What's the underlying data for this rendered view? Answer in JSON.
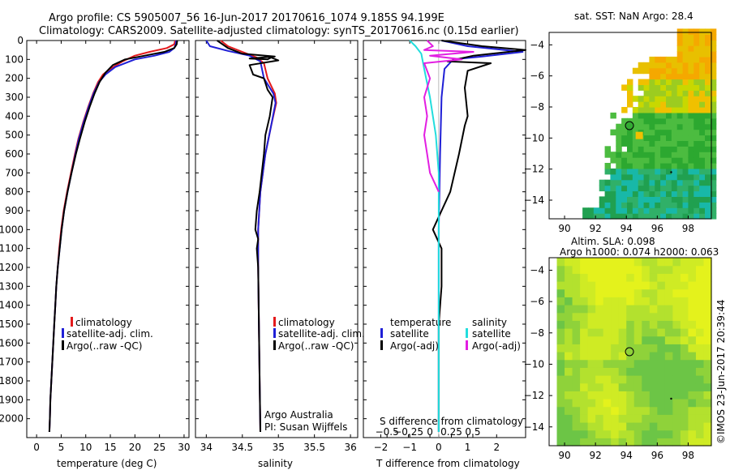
{
  "header": {
    "line1": "Argo profile: CS 5905007_56 16-Jun-2017 20170616_1074 9.185S 94.199E",
    "line2": "Climatology: CARS2009. Satellite-adjusted climatology: synTS_20170616.nc (0.15d earlier)"
  },
  "colors": {
    "climatology": "#e41a1c",
    "satellite": "#1f1fd6",
    "argo": "#000000",
    "salinity_satellite": "#22dddd",
    "salinity_argo": "#e21ee2"
  },
  "chart_data": [
    {
      "type": "line",
      "id": "temperature",
      "xlabel": "temperature (deg C)",
      "ylim": [
        2100,
        0
      ],
      "xlim": [
        -2,
        31
      ],
      "xticks": [
        0,
        5,
        10,
        15,
        20,
        25,
        30
      ],
      "yticks": [
        0,
        100,
        200,
        300,
        400,
        500,
        600,
        700,
        800,
        900,
        1000,
        1100,
        1200,
        1300,
        1400,
        1500,
        1600,
        1700,
        1800,
        1900,
        2000
      ],
      "legend": [
        "climatology",
        "satellite-adj. clim.",
        "Argo(..raw -QC)"
      ],
      "series": [
        {
          "name": "climatology",
          "role": "climatology",
          "points": [
            [
              28.2,
              0
            ],
            [
              28.0,
              20
            ],
            [
              26.5,
              40
            ],
            [
              23,
              60
            ],
            [
              20,
              80
            ],
            [
              17.5,
              110
            ],
            [
              15,
              150
            ],
            [
              13.5,
              180
            ],
            [
              12.5,
              220
            ],
            [
              11.5,
              280
            ],
            [
              10.5,
              350
            ],
            [
              9.5,
              430
            ],
            [
              8.5,
              520
            ],
            [
              7.8,
              600
            ],
            [
              7.0,
              700
            ],
            [
              6.2,
              800
            ],
            [
              5.5,
              900
            ],
            [
              5.0,
              1000
            ],
            [
              4.6,
              1100
            ],
            [
              4.3,
              1200
            ],
            [
              4.0,
              1300
            ],
            [
              3.8,
              1400
            ],
            [
              3.6,
              1500
            ],
            [
              3.4,
              1600
            ],
            [
              3.2,
              1700
            ],
            [
              3.0,
              1800
            ],
            [
              2.8,
              1900
            ],
            [
              2.7,
              2000
            ],
            [
              2.6,
              2070
            ]
          ]
        },
        {
          "name": "satellite-adj. clim.",
          "role": "satellite",
          "points": [
            [
              28.4,
              0
            ],
            [
              28.3,
              20
            ],
            [
              28.0,
              40
            ],
            [
              27,
              60
            ],
            [
              24,
              80
            ],
            [
              20,
              100
            ],
            [
              16,
              140
            ],
            [
              14,
              180
            ],
            [
              12.7,
              220
            ],
            [
              11.6,
              280
            ],
            [
              10.6,
              350
            ],
            [
              9.6,
              430
            ],
            [
              8.6,
              520
            ],
            [
              7.9,
              600
            ],
            [
              7.1,
              700
            ],
            [
              6.3,
              800
            ],
            [
              5.6,
              900
            ],
            [
              5.1,
              1000
            ],
            [
              4.7,
              1100
            ],
            [
              4.3,
              1200
            ],
            [
              4.0,
              1300
            ],
            [
              3.8,
              1400
            ],
            [
              3.6,
              1500
            ],
            [
              3.4,
              1600
            ],
            [
              3.2,
              1700
            ],
            [
              3.0,
              1800
            ],
            [
              2.8,
              1900
            ],
            [
              2.7,
              2000
            ],
            [
              2.6,
              2070
            ]
          ]
        },
        {
          "name": "Argo(..raw -QC)",
          "role": "argo",
          "points": [
            [
              28.6,
              0
            ],
            [
              28.5,
              20
            ],
            [
              28.0,
              40
            ],
            [
              26,
              60
            ],
            [
              22,
              80
            ],
            [
              18,
              100
            ],
            [
              15.5,
              130
            ],
            [
              14,
              170
            ],
            [
              12.8,
              220
            ],
            [
              11.8,
              280
            ],
            [
              10.8,
              350
            ],
            [
              9.8,
              430
            ],
            [
              8.8,
              520
            ],
            [
              8.0,
              600
            ],
            [
              7.1,
              700
            ],
            [
              6.3,
              800
            ],
            [
              5.6,
              900
            ],
            [
              5.1,
              1000
            ],
            [
              4.7,
              1100
            ],
            [
              4.3,
              1200
            ],
            [
              4.0,
              1300
            ],
            [
              3.8,
              1400
            ],
            [
              3.6,
              1500
            ],
            [
              3.4,
              1600
            ],
            [
              3.2,
              1700
            ],
            [
              3.0,
              1800
            ],
            [
              2.8,
              1900
            ],
            [
              2.7,
              2000
            ],
            [
              2.6,
              2070
            ]
          ]
        }
      ]
    },
    {
      "type": "line",
      "id": "salinity",
      "xlabel": "salinity",
      "ylim": [
        2100,
        0
      ],
      "xlim": [
        33.85,
        36.1
      ],
      "xticks": [
        34,
        34.5,
        35,
        35.5,
        36
      ],
      "xtick_labels": [
        "34",
        "34.5",
        "35",
        "35.5",
        "36"
      ],
      "legend": [
        "climatology",
        "satellite-adj. clim.",
        "Argo(..raw -QC)"
      ],
      "annotation": [
        "Argo Australia",
        "PI: Susan Wijffels"
      ],
      "series": [
        {
          "name": "climatology",
          "role": "climatology",
          "points": [
            [
              34.2,
              0
            ],
            [
              34.3,
              30
            ],
            [
              34.5,
              60
            ],
            [
              34.7,
              90
            ],
            [
              34.8,
              120
            ],
            [
              34.85,
              200
            ],
            [
              34.95,
              280
            ],
            [
              34.97,
              330
            ],
            [
              34.9,
              450
            ],
            [
              34.82,
              600
            ],
            [
              34.75,
              800
            ],
            [
              34.72,
              1000
            ],
            [
              34.72,
              1200
            ],
            [
              34.73,
              1500
            ],
            [
              34.74,
              1800
            ],
            [
              34.75,
              2070
            ]
          ]
        },
        {
          "name": "satellite-adj. clim.",
          "role": "satellite",
          "points": [
            [
              34.0,
              0
            ],
            [
              34.05,
              30
            ],
            [
              34.3,
              55
            ],
            [
              34.6,
              80
            ],
            [
              34.75,
              110
            ],
            [
              34.8,
              200
            ],
            [
              34.93,
              280
            ],
            [
              34.96,
              330
            ],
            [
              34.9,
              450
            ],
            [
              34.82,
              600
            ],
            [
              34.75,
              800
            ],
            [
              34.72,
              1000
            ],
            [
              34.72,
              1200
            ],
            [
              34.73,
              1500
            ],
            [
              34.74,
              1800
            ],
            [
              34.75,
              2070
            ]
          ]
        },
        {
          "name": "Argo(..raw -QC)",
          "role": "argo",
          "points": [
            [
              34.15,
              0
            ],
            [
              34.3,
              40
            ],
            [
              34.5,
              70
            ],
            [
              34.95,
              85
            ],
            [
              34.6,
              95
            ],
            [
              34.85,
              100
            ],
            [
              34.9,
              90
            ],
            [
              35.0,
              105
            ],
            [
              34.6,
              130
            ],
            [
              34.65,
              180
            ],
            [
              34.8,
              200
            ],
            [
              34.85,
              260
            ],
            [
              34.92,
              300
            ],
            [
              34.88,
              400
            ],
            [
              34.82,
              500
            ],
            [
              34.8,
              600
            ],
            [
              34.74,
              800
            ],
            [
              34.7,
              900
            ],
            [
              34.68,
              1000
            ],
            [
              34.72,
              1050
            ],
            [
              34.7,
              1100
            ],
            [
              34.72,
              1200
            ],
            [
              34.73,
              1500
            ],
            [
              34.74,
              1800
            ],
            [
              34.75,
              2070
            ]
          ]
        }
      ]
    },
    {
      "type": "line",
      "id": "differences",
      "xlabel": "T difference from climatology",
      "xlabel2": "S difference from climatology",
      "ylim": [
        2100,
        0
      ],
      "xlim": [
        -2.6,
        3.0
      ],
      "xticks": [
        -2,
        -1,
        0,
        1,
        2
      ],
      "xtick_labels": [
        "−2",
        "−1",
        "0",
        "1",
        "2"
      ],
      "sticks": [
        -0.5,
        -0.25,
        0,
        0.25,
        0.5
      ],
      "stick_labels": [
        "−0.5",
        "−0.25",
        "0",
        "0.25",
        "0.5"
      ],
      "legend_temperature_title": "temperature",
      "legend_salinity_title": "salinity",
      "legend_temperature": [
        "satellite",
        "Argo(-adj)"
      ],
      "legend_salinity": [
        "satellite",
        "Argo(-adj)"
      ],
      "series": [
        {
          "name": "satellite",
          "role": "satellite",
          "points": [
            [
              0.1,
              0
            ],
            [
              1.0,
              30
            ],
            [
              2.9,
              60
            ],
            [
              1.5,
              85
            ],
            [
              0.5,
              100
            ],
            [
              0.2,
              150
            ],
            [
              0.1,
              300
            ],
            [
              0.05,
              600
            ],
            [
              0,
              1000
            ],
            [
              0,
              1500
            ],
            [
              0,
              2070
            ]
          ]
        },
        {
          "name": "Argo(-adj)",
          "role": "argo",
          "points": [
            [
              0.1,
              0
            ],
            [
              1.5,
              30
            ],
            [
              3.0,
              50
            ],
            [
              1.2,
              80
            ],
            [
              0.3,
              110
            ],
            [
              1.8,
              120
            ],
            [
              1.0,
              160
            ],
            [
              0.9,
              250
            ],
            [
              1.0,
              400
            ],
            [
              0.9,
              450
            ],
            [
              0.7,
              600
            ],
            [
              0.4,
              800
            ],
            [
              0.1,
              900
            ],
            [
              -0.2,
              1000
            ],
            [
              0.1,
              1100
            ],
            [
              0.1,
              1300
            ],
            [
              0.0,
              1500
            ],
            [
              0.0,
              1700
            ],
            [
              0.0,
              2070
            ]
          ]
        },
        {
          "name": "satellite",
          "role": "salinity_satellite",
          "points": [
            [
              -1.0,
              0
            ],
            [
              -0.8,
              30
            ],
            [
              -0.6,
              70
            ],
            [
              -0.5,
              150
            ],
            [
              -0.3,
              300
            ],
            [
              -0.1,
              500
            ],
            [
              0.0,
              700
            ],
            [
              0.0,
              1000
            ],
            [
              0.0,
              2070
            ]
          ]
        },
        {
          "name": "Argo(-adj)",
          "role": "salinity_argo",
          "points": [
            [
              -0.4,
              0
            ],
            [
              -0.2,
              30
            ],
            [
              -0.5,
              50
            ],
            [
              1.2,
              60
            ],
            [
              -0.3,
              80
            ],
            [
              0.8,
              100
            ],
            [
              -0.5,
              120
            ],
            [
              -0.3,
              200
            ],
            [
              -0.5,
              300
            ],
            [
              -0.4,
              400
            ],
            [
              -0.5,
              500
            ],
            [
              -0.4,
              600
            ],
            [
              -0.3,
              700
            ],
            [
              0.0,
              800
            ]
          ]
        }
      ]
    },
    {
      "type": "heatmap",
      "id": "sst_map",
      "title": "sat. SST: NaN Argo: 28.4",
      "xlim": [
        89,
        99.5
      ],
      "ylim": [
        -15.2,
        -3.2
      ],
      "xticks": [
        90,
        92,
        94,
        96,
        98
      ],
      "yticks": [
        -4,
        -6,
        -8,
        -10,
        -12,
        -14
      ],
      "ytick_labels": [
        "−4",
        "−6",
        "−8",
        "−10",
        "−12",
        "−14"
      ],
      "marker": [
        94.2,
        -9.2
      ]
    },
    {
      "type": "heatmap",
      "id": "sla_map",
      "title": "Altim. SLA: 0.098",
      "subtitle": "Argo h1000: 0.074 h2000: 0.063",
      "xlim": [
        89,
        99.5
      ],
      "ylim": [
        -15.2,
        -3.2
      ],
      "xticks": [
        90,
        92,
        94,
        96,
        98
      ],
      "yticks": [
        -4,
        -6,
        -8,
        -10,
        -12,
        -14
      ],
      "ytick_labels": [
        "−4",
        "−6",
        "−8",
        "−10",
        "−12",
        "−14"
      ],
      "marker": [
        94.2,
        -9.2
      ]
    }
  ],
  "footer_stamp": "©IMOS 23-Jun-2017 20:39:44"
}
